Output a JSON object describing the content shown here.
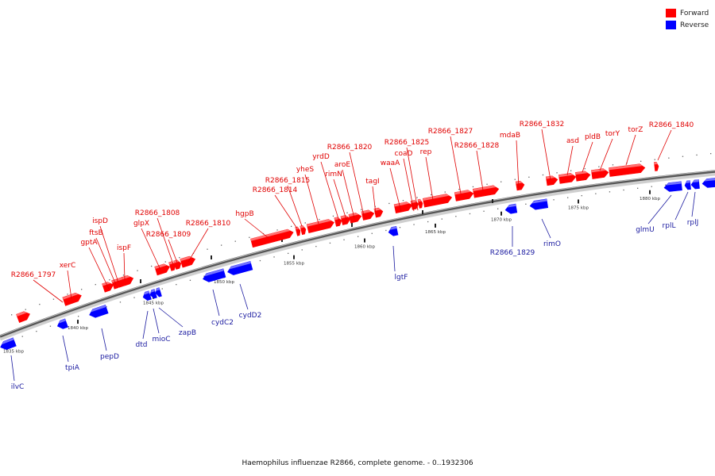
{
  "legend": {
    "forward_label": "Forward",
    "reverse_label": "Reverse",
    "forward_color": "#ff0000",
    "reverse_color": "#0000ff"
  },
  "caption": "Haemophilus influenzae R2866, complete genome. - 0..1932306",
  "ticks": [
    "1835 kbp",
    "1840 kbp",
    "1845 kbp",
    "1850 kbp",
    "1855 kbp",
    "1860 kbp",
    "1865 kbp",
    "1870 kbp",
    "1875 kbp",
    "1880 kbp"
  ],
  "forward_genes": [
    "R2866_1797",
    "xerC",
    "gptA",
    "ftsB",
    "ispD",
    "ispF",
    "glpX",
    "R2866_1808",
    "R2866_1809",
    "R2866_1810",
    "hgpB",
    "R2866_1814",
    "R2866_1815",
    "yheS",
    "yrdD",
    "rimN",
    "aroE",
    "R2866_1820",
    "tagI",
    "waaA",
    "coaD",
    "R2866_1825",
    "rep",
    "R2866_1827",
    "R2866_1828",
    "mdaB",
    "R2866_1832",
    "asd",
    "pldB",
    "torY",
    "torZ",
    "R2866_1840"
  ],
  "reverse_genes": [
    "ilvC",
    "tpiA",
    "pepD",
    "dtd",
    "mioC",
    "zapB",
    "cydC2",
    "cydD2",
    "lgtF",
    "R2866_1829",
    "rimO",
    "glmU",
    "rplL",
    "rplJ"
  ]
}
